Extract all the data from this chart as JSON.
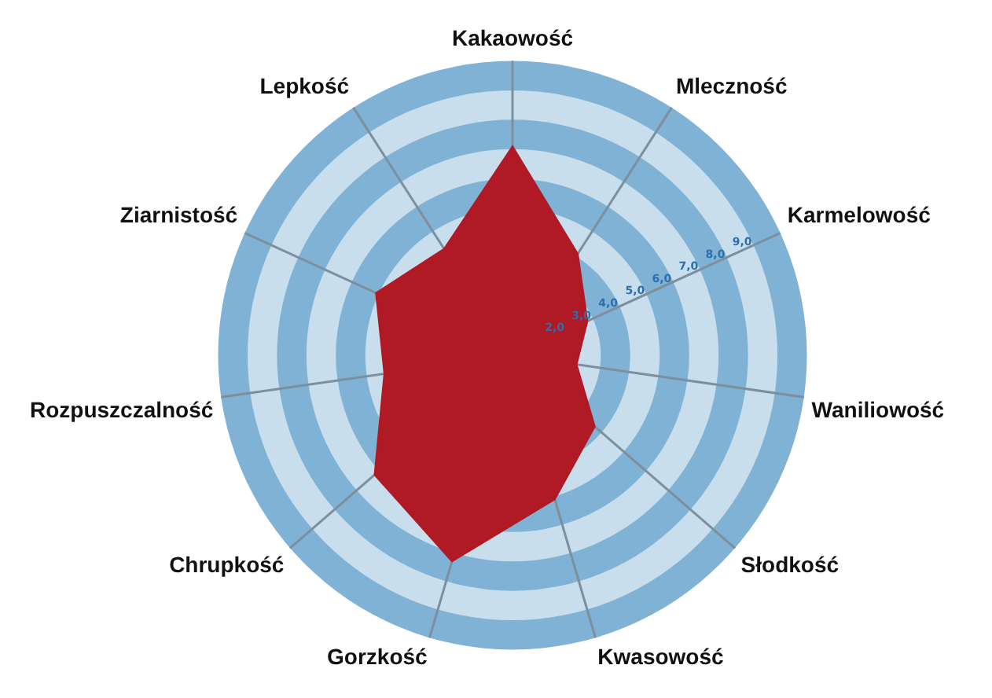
{
  "chart_data": {
    "type": "radar",
    "categories": [
      "Kakaowość",
      "Mleczność",
      "Karmelowość",
      "Waniliowość",
      "Słodkość",
      "Kwasowość",
      "Gorzkość",
      "Chrupkość",
      "Rozpuszczalność",
      "Ziarnistość",
      "Lepkość"
    ],
    "series": [
      {
        "color": "#b01a25",
        "values": [
          7.1,
          4.1,
          2.8,
          2.2,
          3.7,
          5.1,
          7.3,
          6.2,
          4.4,
          5.1,
          4.3
        ]
      }
    ],
    "ylim": [
      0,
      10
    ],
    "yticks": [
      {
        "value": 2,
        "label": "2,0"
      },
      {
        "value": 3,
        "label": "3,0"
      },
      {
        "value": 4,
        "label": "4,0"
      },
      {
        "value": 5,
        "label": "5,0"
      },
      {
        "value": 6,
        "label": "6,0"
      },
      {
        "value": 7,
        "label": "7,0"
      },
      {
        "value": 8,
        "label": "8,0"
      },
      {
        "value": 9,
        "label": "9,0"
      }
    ],
    "grid": true,
    "legend": false
  }
}
